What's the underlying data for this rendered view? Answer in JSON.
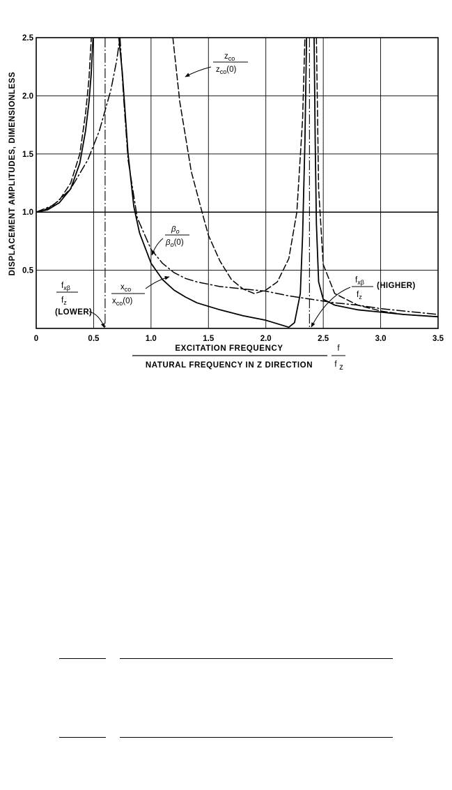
{
  "chart_data": {
    "type": "line",
    "title": "",
    "xlabel_top": "EXCITATION FREQUENCY",
    "xlabel_bottom": "NATURAL FREQUENCY IN Z DIRECTION",
    "xlabel_ratio_num": "f",
    "xlabel_ratio_den": "f",
    "xlabel_ratio_den_sub": "z",
    "ylabel": "DISPLACEMENT AMPLITUDES, DIMENSIONLESS",
    "xlim": [
      0,
      3.5
    ],
    "ylim": [
      0,
      2.5
    ],
    "x_ticks": [
      "0",
      "0.5",
      "1.0",
      "1.5",
      "2.0",
      "2.5",
      "3.0",
      "3.5"
    ],
    "y_ticks": [
      "0.5",
      "1.0",
      "1.5",
      "2.0",
      "2.5"
    ],
    "grid": true,
    "vertical_reference_lines": [
      0.6,
      2.38
    ],
    "series": [
      {
        "name_num": "x",
        "name_num_sub": "co",
        "name_den": "x",
        "name_den_sub": "co",
        "name_den_tail": "(0)",
        "style": "solid",
        "segments": [
          [
            [
              0,
              1.0
            ],
            [
              0.1,
              1.02
            ],
            [
              0.2,
              1.08
            ],
            [
              0.3,
              1.2
            ],
            [
              0.38,
              1.42
            ],
            [
              0.43,
              1.7
            ],
            [
              0.46,
              1.95
            ],
            [
              0.48,
              2.2
            ],
            [
              0.495,
              2.5
            ]
          ],
          [
            [
              0.72,
              2.5
            ],
            [
              0.75,
              2.2
            ],
            [
              0.8,
              1.5
            ],
            [
              0.85,
              1.05
            ],
            [
              0.9,
              0.82
            ],
            [
              1.0,
              0.56
            ],
            [
              1.1,
              0.42
            ],
            [
              1.2,
              0.33
            ],
            [
              1.3,
              0.27
            ],
            [
              1.4,
              0.22
            ],
            [
              1.6,
              0.16
            ],
            [
              1.8,
              0.11
            ],
            [
              2.0,
              0.07
            ],
            [
              2.1,
              0.04
            ],
            [
              2.2,
              0.01
            ],
            [
              2.25,
              0.05
            ],
            [
              2.3,
              0.3
            ],
            [
              2.32,
              0.8
            ],
            [
              2.34,
              1.6
            ],
            [
              2.355,
              2.5
            ]
          ],
          [
            [
              2.42,
              2.5
            ],
            [
              2.43,
              1.6
            ],
            [
              2.44,
              0.9
            ],
            [
              2.46,
              0.4
            ],
            [
              2.5,
              0.25
            ],
            [
              2.6,
              0.2
            ],
            [
              2.8,
              0.16
            ],
            [
              3.0,
              0.14
            ],
            [
              3.2,
              0.12
            ],
            [
              3.5,
              0.1
            ]
          ]
        ]
      },
      {
        "name_num": "z",
        "name_num_sub": "co",
        "name_den": "z",
        "name_den_sub": "co",
        "name_den_tail": "(0)",
        "style": "dashed",
        "segments": [
          [
            [
              0,
              1.0
            ],
            [
              0.1,
              1.03
            ],
            [
              0.2,
              1.1
            ],
            [
              0.3,
              1.25
            ],
            [
              0.38,
              1.5
            ],
            [
              0.43,
              1.85
            ],
            [
              0.46,
              2.15
            ],
            [
              0.48,
              2.5
            ]
          ],
          [
            [
              1.19,
              2.5
            ],
            [
              1.25,
              1.95
            ],
            [
              1.35,
              1.35
            ],
            [
              1.45,
              0.98
            ],
            [
              1.5,
              0.8
            ],
            [
              1.6,
              0.58
            ],
            [
              1.7,
              0.42
            ],
            [
              1.8,
              0.34
            ],
            [
              1.9,
              0.3
            ],
            [
              2.0,
              0.33
            ],
            [
              2.1,
              0.4
            ],
            [
              2.2,
              0.6
            ],
            [
              2.27,
              1.0
            ],
            [
              2.32,
              1.8
            ],
            [
              2.34,
              2.5
            ]
          ],
          [
            [
              2.44,
              2.5
            ],
            [
              2.46,
              1.2
            ],
            [
              2.5,
              0.55
            ],
            [
              2.6,
              0.3
            ],
            [
              2.8,
              0.2
            ],
            [
              3.0,
              0.15
            ],
            [
              3.2,
              0.12
            ],
            [
              3.5,
              0.1
            ]
          ]
        ]
      },
      {
        "name_num": "β",
        "name_num_sub": "o",
        "name_den": "β",
        "name_den_sub": "o",
        "name_den_tail": "(0)",
        "style": "dashdot",
        "segments": [
          [
            [
              0,
              1.0
            ],
            [
              0.15,
              1.06
            ],
            [
              0.3,
              1.2
            ],
            [
              0.45,
              1.45
            ],
            [
              0.55,
              1.7
            ],
            [
              0.65,
              2.05
            ],
            [
              0.7,
              2.3
            ],
            [
              0.73,
              2.5
            ]
          ],
          [
            [
              0.73,
              2.5
            ],
            [
              0.76,
              2.0
            ],
            [
              0.8,
              1.45
            ],
            [
              0.88,
              0.95
            ],
            [
              1.0,
              0.68
            ],
            [
              1.1,
              0.56
            ],
            [
              1.2,
              0.48
            ],
            [
              1.3,
              0.43
            ],
            [
              1.4,
              0.4
            ],
            [
              1.5,
              0.38
            ],
            [
              1.6,
              0.36
            ],
            [
              1.8,
              0.34
            ],
            [
              2.0,
              0.32
            ],
            [
              2.2,
              0.28
            ],
            [
              2.4,
              0.25
            ],
            [
              2.6,
              0.22
            ],
            [
              2.8,
              0.2
            ],
            [
              3.0,
              0.17
            ],
            [
              3.2,
              0.15
            ],
            [
              3.5,
              0.12
            ]
          ]
        ]
      }
    ],
    "annotations": {
      "z": {
        "num": "z",
        "num_sub": "co",
        "den": "z",
        "den_sub": "co",
        "den_tail": "(0)"
      },
      "beta": {
        "num": "β",
        "num_sub": "o",
        "den": "β",
        "den_sub": "o",
        "den_tail": "(0)"
      },
      "x": {
        "num": "x",
        "num_sub": "co",
        "den": "x",
        "den_sub": "co",
        "den_tail": "(0)"
      },
      "lower": {
        "num": "f",
        "num_sub": "xβ",
        "den": "f",
        "den_sub": "z",
        "note": "(LOWER)"
      },
      "higher": {
        "num": "f",
        "num_sub": "xβ",
        "den": "f",
        "den_sub": "z",
        "note": "(HIGHER)"
      }
    }
  }
}
